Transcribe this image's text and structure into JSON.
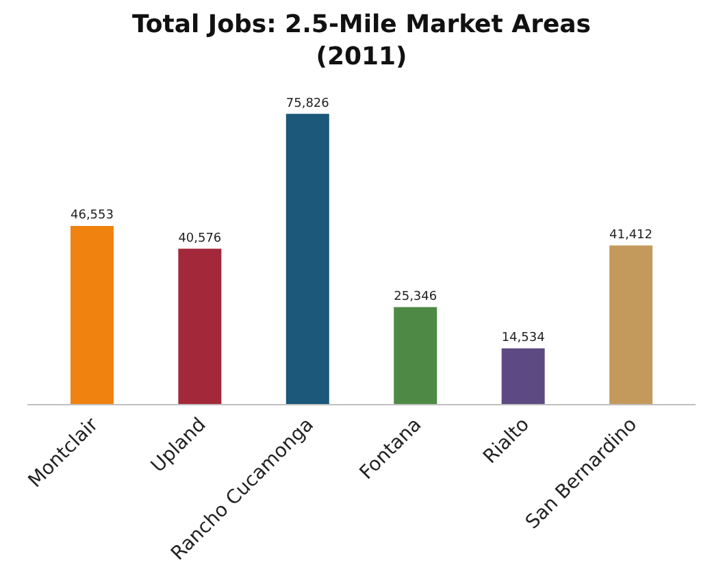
{
  "chart_data": {
    "type": "bar",
    "title": "Total Jobs: 2.5-Mile Market Areas\n(2011)",
    "categories": [
      "Montclair",
      "Upland",
      "Rancho Cucamonga",
      "Fontana",
      "Rialto",
      "San Bernardino"
    ],
    "values": [
      46553,
      40576,
      75826,
      25346,
      14534,
      41412
    ],
    "colors": [
      "#f0820f",
      "#a3283a",
      "#1b587a",
      "#4e8a45",
      "#5e4a82",
      "#c49a5c"
    ],
    "value_labels": [
      "46,553",
      "40,576",
      "75,826",
      "25,346",
      "14,534",
      "41,412"
    ],
    "tick_labels": "x"
  }
}
